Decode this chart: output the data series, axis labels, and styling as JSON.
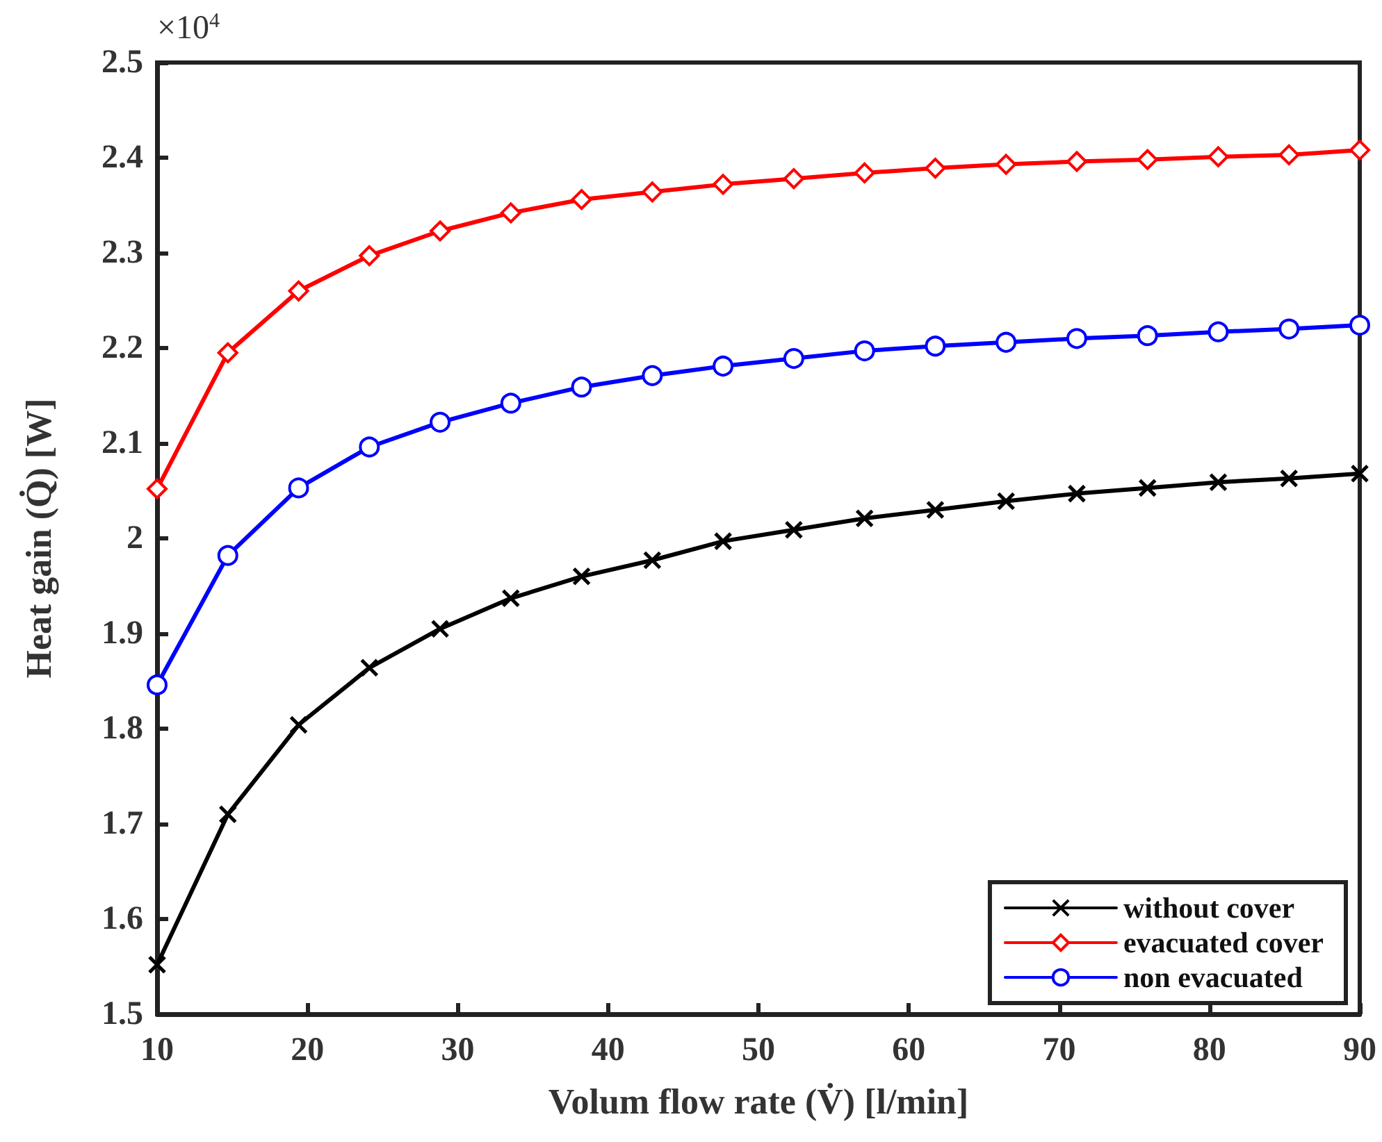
{
  "chart_data": {
    "type": "line",
    "xlabel": "Volum flow rate (V̇) [l/min]",
    "ylabel": "Heat gain (Q̇) [W]",
    "annotations": [
      "×10$^{4}$"
    ],
    "x": [
      10,
      14.706,
      19.412,
      24.118,
      28.824,
      33.529,
      38.235,
      42.941,
      47.647,
      52.353,
      57.059,
      61.765,
      66.471,
      71.176,
      75.882,
      80.588,
      85.294,
      90
    ],
    "series": [
      {
        "name": "without cover",
        "color": "#000000",
        "marker": "cross",
        "values": [
          1.552,
          1.71,
          1.804,
          1.864,
          1.905,
          1.937,
          1.96,
          1.977,
          1.997,
          2.009,
          2.021,
          2.03,
          2.039,
          2.047,
          2.053,
          2.059,
          2.063,
          2.068
        ]
      },
      {
        "name": "evacuated cover",
        "color": "#ff0000",
        "marker": "diamond",
        "values": [
          2.052,
          2.195,
          2.26,
          2.297,
          2.323,
          2.342,
          2.356,
          2.364,
          2.372,
          2.378,
          2.384,
          2.389,
          2.393,
          2.396,
          2.398,
          2.401,
          2.403,
          2.408
        ]
      },
      {
        "name": "non evacuated",
        "color": "#0000ff",
        "marker": "circle",
        "values": [
          1.846,
          1.982,
          2.053,
          2.096,
          2.122,
          2.142,
          2.159,
          2.171,
          2.181,
          2.189,
          2.197,
          2.202,
          2.206,
          2.21,
          2.213,
          2.217,
          2.22,
          2.224
        ]
      }
    ],
    "xlim": [
      10,
      90
    ],
    "xticks": [
      10,
      20,
      30,
      40,
      50,
      60,
      70,
      80,
      90
    ],
    "ylim": [
      1.5,
      2.5
    ],
    "yticks": [
      1.5,
      1.6,
      1.7,
      1.8,
      1.9,
      2,
      2.1,
      2.2,
      2.3,
      2.4,
      2.5
    ],
    "grid": false,
    "legend": "bottom right",
    "line_style": "solid"
  }
}
